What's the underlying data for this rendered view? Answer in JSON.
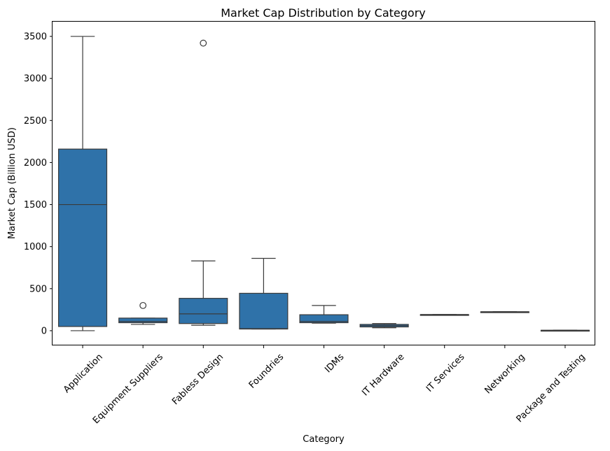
{
  "chart_data": {
    "type": "box",
    "title": "Market Cap Distribution by Category",
    "xlabel": "Category",
    "ylabel": "Market Cap (Billion USD)",
    "ylim": [
      -175,
      3675
    ],
    "yticks": [
      0,
      500,
      1000,
      1500,
      2000,
      2500,
      3000,
      3500
    ],
    "box_color": "#2f72a9",
    "line_color": "#3a3a3a",
    "grid": false,
    "categories": [
      "Application",
      "Equipment Suppliers",
      "Fabless Design",
      "Foundries",
      "IDMs",
      "IT Hardware",
      "IT Services",
      "Networking",
      "Package and Testing"
    ],
    "boxes": [
      {
        "whisker_low": 0,
        "q1": 50,
        "median": 1500,
        "q3": 2160,
        "whisker_high": 3500,
        "outliers": []
      },
      {
        "whisker_low": 75,
        "q1": 95,
        "median": 110,
        "q3": 150,
        "whisker_high": 150,
        "outliers": [
          300
        ]
      },
      {
        "whisker_low": 65,
        "q1": 85,
        "median": 200,
        "q3": 385,
        "whisker_high": 830,
        "outliers": [
          3420
        ]
      },
      {
        "whisker_low": 20,
        "q1": 20,
        "median": 25,
        "q3": 445,
        "whisker_high": 860,
        "outliers": []
      },
      {
        "whisker_low": 90,
        "q1": 95,
        "median": 110,
        "q3": 190,
        "whisker_high": 300,
        "outliers": []
      },
      {
        "whisker_low": 35,
        "q1": 45,
        "median": 60,
        "q3": 75,
        "whisker_high": 85,
        "outliers": []
      },
      {
        "whisker_low": 192,
        "q1": 192,
        "median": 192,
        "q3": 192,
        "whisker_high": 192,
        "outliers": []
      },
      {
        "whisker_low": 225,
        "q1": 225,
        "median": 225,
        "q3": 225,
        "whisker_high": 225,
        "outliers": []
      },
      {
        "whisker_low": 5,
        "q1": 5,
        "median": 5,
        "q3": 5,
        "whisker_high": 5,
        "outliers": []
      }
    ]
  }
}
